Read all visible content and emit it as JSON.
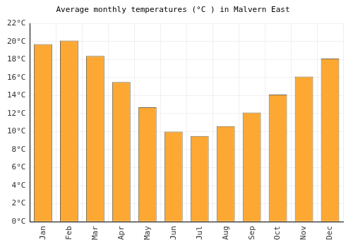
{
  "chart_data": {
    "type": "bar",
    "title": "Average monthly temperatures (°C ) in Malvern East",
    "categories": [
      "Jan",
      "Feb",
      "Mar",
      "Apr",
      "May",
      "Jun",
      "Jul",
      "Aug",
      "Sep",
      "Oct",
      "Nov",
      "Dec"
    ],
    "values": [
      19.7,
      20.1,
      18.4,
      15.5,
      12.7,
      10.0,
      9.5,
      10.6,
      12.1,
      14.1,
      16.1,
      18.1
    ],
    "color": "#fca832",
    "ylim": [
      0,
      22
    ],
    "yticks": [
      {
        "value": 0,
        "label": "0°C"
      },
      {
        "value": 2,
        "label": "2°C"
      },
      {
        "value": 4,
        "label": "4°C"
      },
      {
        "value": 6,
        "label": "6°C"
      },
      {
        "value": 8,
        "label": "8°C"
      },
      {
        "value": 10,
        "label": "10°C"
      },
      {
        "value": 12,
        "label": "12°C"
      },
      {
        "value": 14,
        "label": "14°C"
      },
      {
        "value": 16,
        "label": "16°C"
      },
      {
        "value": 18,
        "label": "18°C"
      },
      {
        "value": 20,
        "label": "20°C"
      },
      {
        "value": 22,
        "label": "22°C"
      }
    ],
    "grid": true
  }
}
